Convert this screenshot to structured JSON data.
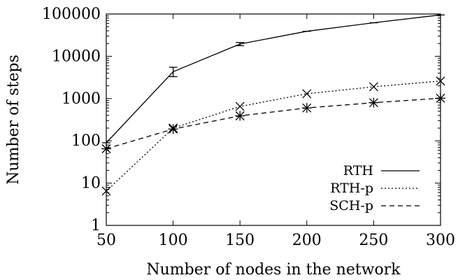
{
  "chart_data": {
    "type": "line",
    "title": "",
    "xlabel": "Number of nodes in the network",
    "ylabel": "Number of steps",
    "y_scale": "log",
    "xlim": [
      50,
      300
    ],
    "ylim": [
      1,
      100000
    ],
    "grid": false,
    "legend_position": "bottom-right",
    "x_ticks": [
      "50",
      "100",
      "150",
      "200",
      "250",
      "300"
    ],
    "y_ticks": [
      "1",
      "10",
      "100",
      "1000",
      "10000",
      "100000"
    ],
    "series": [
      {
        "name": "RTH",
        "line_style": "solid",
        "marker": "errorbar",
        "x": [
          50,
          100,
          150,
          200,
          250,
          300
        ],
        "y": [
          90,
          4300,
          19500,
          39000,
          62000,
          95000
        ],
        "error_low": [
          0,
          3300,
          17800,
          0,
          0,
          0
        ],
        "error_high": [
          0,
          5500,
          21200,
          0,
          0,
          0
        ]
      },
      {
        "name": "RTH-p",
        "line_style": "dotted",
        "marker": "x",
        "x": [
          50,
          100,
          150,
          200,
          250,
          300
        ],
        "y": [
          6.5,
          200,
          650,
          1300,
          1900,
          2600
        ]
      },
      {
        "name": "SCH-p",
        "line_style": "dashed",
        "marker": "asterisk",
        "x": [
          50,
          100,
          150,
          200,
          250,
          300
        ],
        "y": [
          65,
          190,
          390,
          600,
          800,
          1020
        ]
      }
    ]
  }
}
